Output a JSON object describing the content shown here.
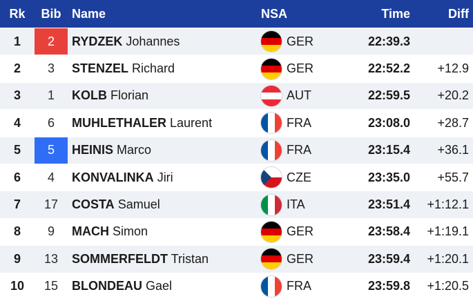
{
  "header": {
    "rank": "Rk",
    "bib": "Bib",
    "name": "Name",
    "nsa": "NSA",
    "time": "Time",
    "diff": "Diff"
  },
  "colors": {
    "header_bg": "#1c3f9e",
    "bib_red": "#e8413c",
    "bib_blue": "#2f6df6",
    "row_alt": "#eef1f5"
  },
  "rows": [
    {
      "rank": "1",
      "bib": "2",
      "bib_highlight": "red",
      "last": "RYDZEK",
      "first": "Johannes",
      "nsa": "GER",
      "flag_icon": "germany-flag-icon",
      "time": "22:39.3",
      "diff": ""
    },
    {
      "rank": "2",
      "bib": "3",
      "bib_highlight": "",
      "last": "STENZEL",
      "first": "Richard",
      "nsa": "GER",
      "flag_icon": "germany-flag-icon",
      "time": "22:52.2",
      "diff": "+12.9"
    },
    {
      "rank": "3",
      "bib": "1",
      "bib_highlight": "",
      "last": "KOLB",
      "first": "Florian",
      "nsa": "AUT",
      "flag_icon": "austria-flag-icon",
      "time": "22:59.5",
      "diff": "+20.2"
    },
    {
      "rank": "4",
      "bib": "6",
      "bib_highlight": "",
      "last": "MUHLETHALER",
      "first": "Laurent",
      "nsa": "FRA",
      "flag_icon": "france-flag-icon",
      "time": "23:08.0",
      "diff": "+28.7"
    },
    {
      "rank": "5",
      "bib": "5",
      "bib_highlight": "blue",
      "last": "HEINIS",
      "first": "Marco",
      "nsa": "FRA",
      "flag_icon": "france-flag-icon",
      "time": "23:15.4",
      "diff": "+36.1"
    },
    {
      "rank": "6",
      "bib": "4",
      "bib_highlight": "",
      "last": "KONVALINKA",
      "first": "Jiri",
      "nsa": "CZE",
      "flag_icon": "czech-flag-icon",
      "time": "23:35.0",
      "diff": "+55.7"
    },
    {
      "rank": "7",
      "bib": "17",
      "bib_highlight": "",
      "last": "COSTA",
      "first": "Samuel",
      "nsa": "ITA",
      "flag_icon": "italy-flag-icon",
      "time": "23:51.4",
      "diff": "+1:12.1"
    },
    {
      "rank": "8",
      "bib": "9",
      "bib_highlight": "",
      "last": "MACH",
      "first": "Simon",
      "nsa": "GER",
      "flag_icon": "germany-flag-icon",
      "time": "23:58.4",
      "diff": "+1:19.1"
    },
    {
      "rank": "9",
      "bib": "13",
      "bib_highlight": "",
      "last": "SOMMERFELDT",
      "first": "Tristan",
      "nsa": "GER",
      "flag_icon": "germany-flag-icon",
      "time": "23:59.4",
      "diff": "+1:20.1"
    },
    {
      "rank": "10",
      "bib": "15",
      "bib_highlight": "",
      "last": "BLONDEAU",
      "first": "Gael",
      "nsa": "FRA",
      "flag_icon": "france-flag-icon",
      "time": "23:59.8",
      "diff": "+1:20.5"
    }
  ]
}
